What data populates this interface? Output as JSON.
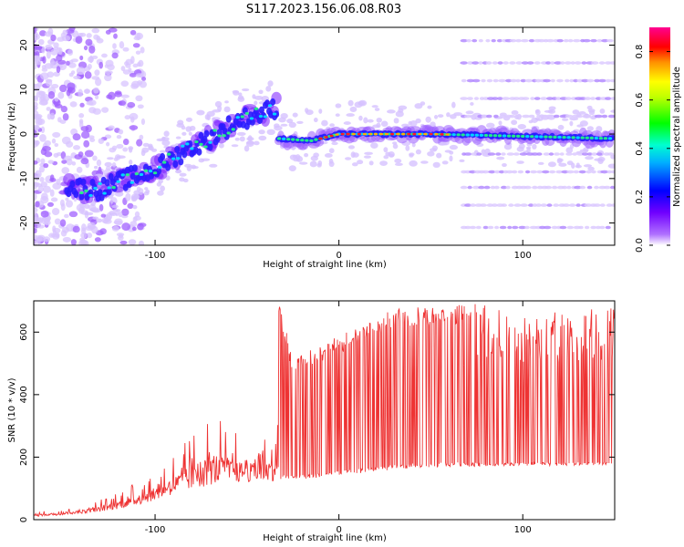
{
  "figure_title": "S117.2023.156.06.08.R03",
  "chart_data": [
    {
      "type": "heatmap",
      "name": "spectrogram",
      "title": "",
      "xlabel": "Height of straight line (km)",
      "ylabel": "Frequency (Hz)",
      "xlim": [
        -166,
        150
      ],
      "ylim": [
        -25,
        24
      ],
      "x_ticks": [
        -100,
        0,
        100
      ],
      "y_ticks": [
        -20,
        -10,
        0,
        10,
        20
      ],
      "x_tick_labels": [
        "-100",
        "0",
        "100"
      ],
      "y_tick_labels": [
        "-20",
        "-10",
        "0",
        "10",
        "20"
      ],
      "colorbar": {
        "label": "Normalized spectral amplitude",
        "range": [
          0.0,
          0.9
        ],
        "ticks": [
          0.0,
          0.2,
          0.4,
          0.6,
          0.8
        ],
        "tick_labels": [
          "0.0",
          "0.2",
          "0.4",
          "0.6",
          "0.8"
        ],
        "colormap": [
          "#ffffff",
          "#8800ff",
          "#0000ff",
          "#00ffff",
          "#00ff00",
          "#ffff00",
          "#ff8800",
          "#ff0000",
          "#ff00aa"
        ]
      },
      "ridge": [
        {
          "x": -145,
          "y": -12
        },
        {
          "x": -130,
          "y": -12.5
        },
        {
          "x": -115,
          "y": -10
        },
        {
          "x": -100,
          "y": -8
        },
        {
          "x": -85,
          "y": -4
        },
        {
          "x": -70,
          "y": -1
        },
        {
          "x": -55,
          "y": 3
        },
        {
          "x": -40,
          "y": 5
        },
        {
          "x": -34,
          "y": 6
        },
        {
          "x": -33,
          "y": -1
        },
        {
          "x": -15,
          "y": -1.5
        },
        {
          "x": 0,
          "y": 0
        },
        {
          "x": 50,
          "y": 0
        },
        {
          "x": 100,
          "y": -0.5
        },
        {
          "x": 150,
          "y": -1
        }
      ],
      "harmonic_frequencies": [
        -21,
        -16,
        -12,
        -8.5,
        -4.5,
        4,
        8,
        12,
        16,
        21
      ]
    },
    {
      "type": "line",
      "name": "snr",
      "title": "",
      "xlabel": "Height of straight line (km)",
      "ylabel": "SNR (10 * v/v)",
      "xlim": [
        -166,
        150
      ],
      "ylim": [
        0,
        700
      ],
      "x_ticks": [
        -100,
        0,
        100
      ],
      "y_ticks": [
        0,
        200,
        400,
        600
      ],
      "x_tick_labels": [
        "-100",
        "0",
        "100"
      ],
      "y_tick_labels": [
        "0",
        "200",
        "400",
        "600"
      ],
      "color": "#ee3333",
      "baseline": [
        {
          "x": -166,
          "y": 10
        },
        {
          "x": -150,
          "y": 15
        },
        {
          "x": -130,
          "y": 25
        },
        {
          "x": -110,
          "y": 45
        },
        {
          "x": -90,
          "y": 80
        },
        {
          "x": -70,
          "y": 110
        },
        {
          "x": -50,
          "y": 120
        },
        {
          "x": -34,
          "y": 125
        },
        {
          "x": -20,
          "y": 130
        },
        {
          "x": 0,
          "y": 140
        },
        {
          "x": 20,
          "y": 155
        },
        {
          "x": 40,
          "y": 165
        },
        {
          "x": 60,
          "y": 170
        },
        {
          "x": 75,
          "y": 170
        },
        {
          "x": 100,
          "y": 172
        },
        {
          "x": 150,
          "y": 175
        }
      ],
      "envelope": [
        {
          "x": -166,
          "y": 25
        },
        {
          "x": -140,
          "y": 40
        },
        {
          "x": -120,
          "y": 90
        },
        {
          "x": -100,
          "y": 150
        },
        {
          "x": -85,
          "y": 240
        },
        {
          "x": -68,
          "y": 340
        },
        {
          "x": -50,
          "y": 250
        },
        {
          "x": -35,
          "y": 280
        },
        {
          "x": -33,
          "y": 700
        },
        {
          "x": -25,
          "y": 520
        },
        {
          "x": -10,
          "y": 560
        },
        {
          "x": 10,
          "y": 620
        },
        {
          "x": 30,
          "y": 680
        },
        {
          "x": 50,
          "y": 680
        },
        {
          "x": 75,
          "y": 690
        },
        {
          "x": 100,
          "y": 670
        },
        {
          "x": 150,
          "y": 680
        }
      ]
    }
  ]
}
